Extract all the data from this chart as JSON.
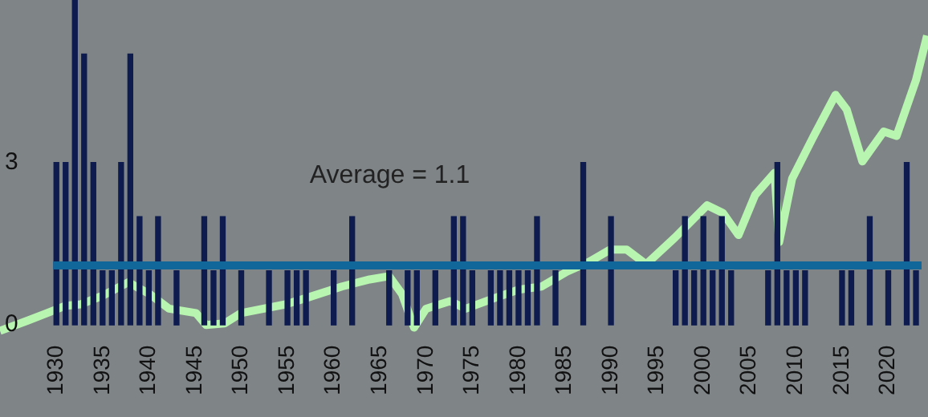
{
  "chart_data": {
    "type": "bar",
    "xlim": [
      1923.9,
      2024.3
    ],
    "xticks": [
      1930,
      1935,
      1940,
      1945,
      1950,
      1955,
      1960,
      1965,
      1970,
      1975,
      1980,
      1985,
      1990,
      1995,
      2000,
      2005,
      2010,
      2015,
      2020
    ],
    "ylim": [
      -1.7,
      6
    ],
    "yticks": [
      0,
      3
    ],
    "grid": false,
    "legend": false,
    "series": [
      {
        "color": "#0d1b4f",
        "x": [
          1930,
          1931,
          1932,
          1933,
          1934,
          1935,
          1936,
          1937,
          1938,
          1939,
          1940,
          1941,
          1943,
          1946,
          1947,
          1948,
          1950,
          1953,
          1955,
          1956,
          1957,
          1960,
          1962,
          1966,
          1968,
          1969,
          1971,
          1973,
          1974,
          1975,
          1977,
          1978,
          1979,
          1980,
          1981,
          1982,
          1984,
          1987,
          1990,
          1997,
          1998,
          1999,
          2000,
          2001,
          2002,
          2003,
          2007,
          2008,
          2009,
          2010,
          2011,
          2015,
          2016,
          2018,
          2020,
          2022,
          2023
        ],
        "values": [
          3,
          3,
          6,
          5,
          3,
          1,
          1,
          3,
          5,
          2,
          1,
          2,
          1,
          2,
          1,
          2,
          1,
          1,
          1,
          1,
          1,
          1,
          2,
          1,
          1,
          1,
          1,
          2,
          2,
          1,
          1,
          1,
          1,
          1,
          1,
          2,
          1,
          3,
          2,
          1,
          2,
          1,
          2,
          1,
          2,
          1,
          1,
          3,
          1,
          1,
          1,
          1,
          1,
          2,
          1,
          3,
          1
        ]
      },
      {
        "type": "line",
        "color": "#b8f5b0",
        "x": [
          1923.9,
          1926.9,
          1929,
          1930.9,
          1932.6,
          1935,
          1937.8,
          1938.9,
          1940.1,
          1942.2,
          1945.1,
          1946.2,
          1948.2,
          1950,
          1954.8,
          1956.9,
          1960.9,
          1963.9,
          1966,
          1967.4,
          1968.7,
          1970,
          1972.6,
          1974.3,
          1977.3,
          1980,
          1982.5,
          1985.2,
          1987.7,
          1989.9,
          1991.7,
          1993.8,
          1996.9,
          2000.4,
          2002.1,
          2003.8,
          2005.6,
          2007.7,
          2008.2,
          2009.6,
          2012,
          2014.3,
          2015.5,
          2017.2,
          2019.5,
          2020.9,
          2023,
          2024.2
        ],
        "values": [
          -0.11,
          0.08,
          0.22,
          0.35,
          0.38,
          0.54,
          0.79,
          0.68,
          0.57,
          0.3,
          0.22,
          0,
          0.03,
          0.22,
          0.38,
          0.49,
          0.71,
          0.84,
          0.9,
          0.57,
          -0.05,
          0.3,
          0.44,
          0.3,
          0.49,
          0.65,
          0.71,
          0.98,
          1.17,
          1.39,
          1.39,
          1.12,
          1.61,
          2.21,
          2.07,
          1.66,
          2.4,
          2.81,
          1.53,
          2.7,
          3.51,
          4.25,
          3.98,
          3.02,
          3.57,
          3.49,
          4.52,
          5.34
        ]
      }
    ],
    "ref_lines": [
      {
        "axis": "y",
        "value": 1.1,
        "label": "Average = 1.1",
        "color": "#12679a"
      }
    ]
  }
}
